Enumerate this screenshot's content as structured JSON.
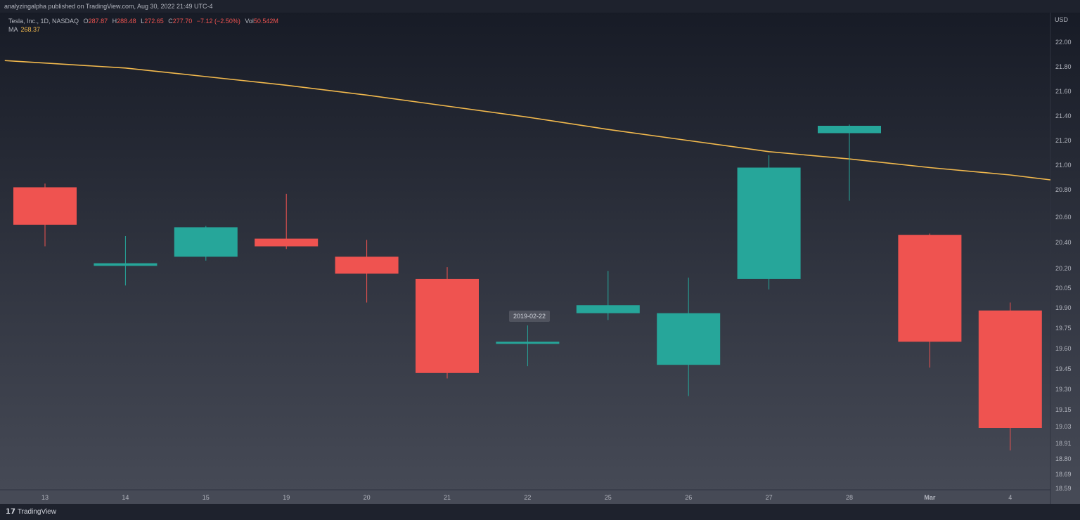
{
  "header": {
    "published_by": "analyzingalpha published on TradingView.com, Aug 30, 2022 21:49 UTC-4"
  },
  "legend": {
    "symbol": "Tesla, Inc., 1D, NASDAQ",
    "open_label": "O",
    "open": "287.87",
    "high_label": "H",
    "high": "288.48",
    "low_label": "L",
    "low": "272.65",
    "close_label": "C",
    "close": "277.70",
    "change": "−7.12 (−2.50%)",
    "vol_label": "Vol",
    "vol": "50.542M",
    "ma_label": "MA",
    "ma_value": "268.37"
  },
  "tooltip": {
    "date": "2019-02-22"
  },
  "footer": {
    "brand": "TradingView"
  },
  "colors": {
    "up": "#26a69a",
    "down": "#ef5350",
    "ma": "#f2b94d",
    "grid": "#2a2e39",
    "text": "#b2b5be"
  },
  "chart_data": {
    "type": "candlestick",
    "currency": "USD",
    "grid": false,
    "y_ticks": [
      22.0,
      21.8,
      21.6,
      21.4,
      21.2,
      21.0,
      20.8,
      20.6,
      20.4,
      20.2,
      20.05,
      19.9,
      19.75,
      19.6,
      19.45,
      19.3,
      19.15,
      19.03,
      18.91,
      18.8,
      18.69,
      18.59
    ],
    "y_tick_labels": [
      "22.00",
      "21.80",
      "21.60",
      "21.40",
      "21.20",
      "21.00",
      "20.80",
      "20.60",
      "20.40",
      "20.20",
      "20.05",
      "19.90",
      "19.75",
      "19.60",
      "19.45",
      "19.30",
      "19.15",
      "19.03",
      "18.91",
      "18.80",
      "18.69",
      "18.59"
    ],
    "x_labels": [
      "13",
      "14",
      "15",
      "19",
      "20",
      "21",
      "22",
      "25",
      "26",
      "27",
      "28",
      "Mar",
      "4"
    ],
    "candles": [
      {
        "o": 20.82,
        "h": 20.85,
        "l": 20.37,
        "c": 20.54
      },
      {
        "o": 20.22,
        "h": 20.45,
        "l": 20.07,
        "c": 20.24
      },
      {
        "o": 20.29,
        "h": 20.53,
        "l": 20.26,
        "c": 20.52
      },
      {
        "o": 20.43,
        "h": 20.77,
        "l": 20.35,
        "c": 20.37
      },
      {
        "o": 20.29,
        "h": 20.42,
        "l": 19.94,
        "c": 20.16
      },
      {
        "o": 20.12,
        "h": 20.21,
        "l": 19.38,
        "c": 19.42
      },
      {
        "o": 19.64,
        "h": 19.77,
        "l": 19.47,
        "c": 19.65
      },
      {
        "o": 19.86,
        "h": 20.18,
        "l": 19.81,
        "c": 19.92
      },
      {
        "o": 19.48,
        "h": 20.13,
        "l": 19.25,
        "c": 19.86
      },
      {
        "o": 20.12,
        "h": 21.08,
        "l": 20.04,
        "c": 20.98
      },
      {
        "o": 21.26,
        "h": 21.33,
        "l": 20.72,
        "c": 21.32
      },
      {
        "o": 20.46,
        "h": 20.47,
        "l": 19.46,
        "c": 19.65
      },
      {
        "o": 19.88,
        "h": 19.94,
        "l": 18.86,
        "c": 19.02
      }
    ],
    "ma_series": [
      {
        "i": -0.5,
        "v": 21.85
      },
      {
        "i": 1,
        "v": 21.79
      },
      {
        "i": 2,
        "v": 21.72
      },
      {
        "i": 3,
        "v": 21.65
      },
      {
        "i": 4,
        "v": 21.57
      },
      {
        "i": 5,
        "v": 21.48
      },
      {
        "i": 6,
        "v": 21.39
      },
      {
        "i": 7,
        "v": 21.29
      },
      {
        "i": 8,
        "v": 21.2
      },
      {
        "i": 9,
        "v": 21.11
      },
      {
        "i": 10,
        "v": 21.05
      },
      {
        "i": 11,
        "v": 20.98
      },
      {
        "i": 12,
        "v": 20.92
      },
      {
        "i": 12.5,
        "v": 20.88
      }
    ]
  }
}
